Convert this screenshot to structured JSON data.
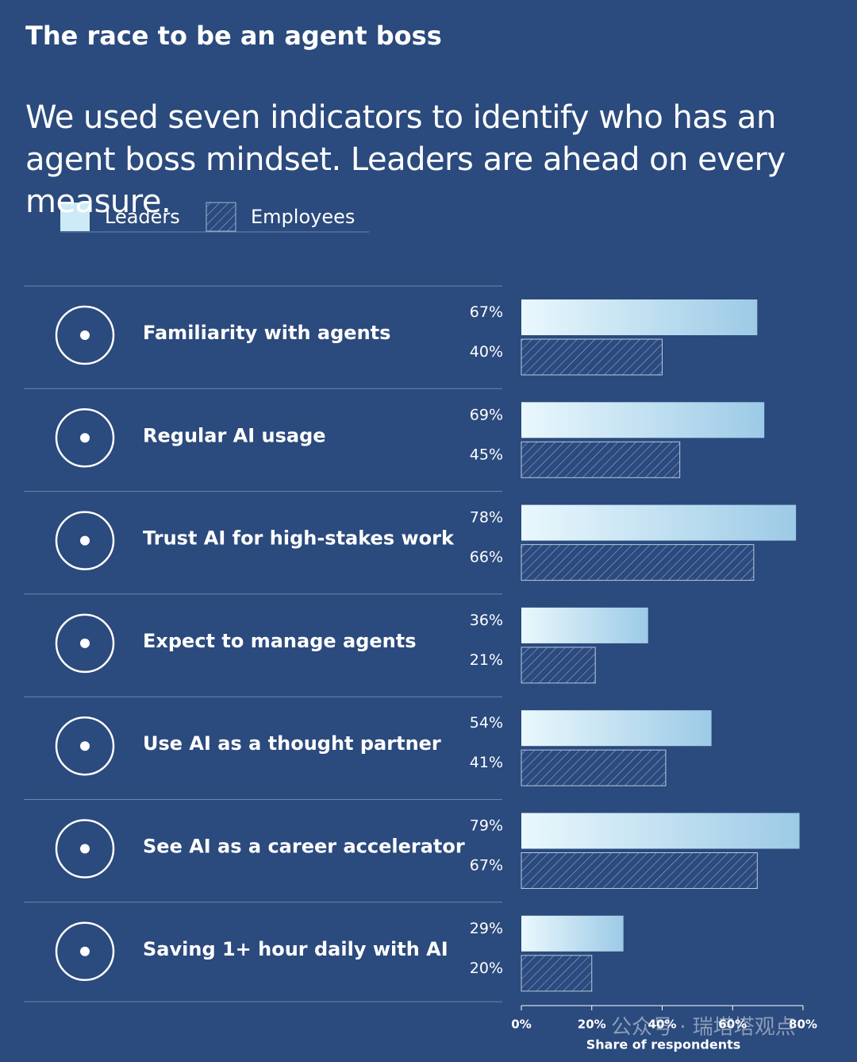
{
  "chart_data": {
    "type": "bar",
    "orientation": "horizontal",
    "title": "The race to be an agent boss",
    "subtitle": "We used seven indicators to identify who has an agent boss mindset. Leaders are ahead on every measure.",
    "categories": [
      "Familiarity with agents",
      "Regular AI usage",
      "Trust AI for high-stakes work",
      "Expect to manage agents",
      "Use AI as a thought partner",
      "See AI as a career accelerator",
      "Saving 1+ hour daily with AI"
    ],
    "series": [
      {
        "name": "Leaders",
        "color": "#cdeaf7",
        "values": [
          67,
          69,
          78,
          36,
          54,
          79,
          29
        ],
        "value_labels": [
          "67%",
          "69%",
          "78%",
          "36%",
          "54%",
          "79%",
          "29%"
        ]
      },
      {
        "name": "Employees",
        "color": "#2c4a7e",
        "hatch": true,
        "values": [
          40,
          45,
          66,
          21,
          41,
          67,
          20
        ],
        "value_labels": [
          "40%",
          "45%",
          "66%",
          "21%",
          "41%",
          "67%",
          "20%"
        ]
      }
    ],
    "xlim": [
      0,
      80
    ],
    "xticks": [
      {
        "value": 0,
        "label": "0%"
      },
      {
        "value": 20,
        "label": "20%"
      },
      {
        "value": 40,
        "label": "40%"
      },
      {
        "value": 60,
        "label": "60%"
      },
      {
        "value": 80,
        "label": "80%"
      }
    ],
    "xlabel": "Share of respondents",
    "watermark": "公众号 · 瑞塔塔观点"
  }
}
